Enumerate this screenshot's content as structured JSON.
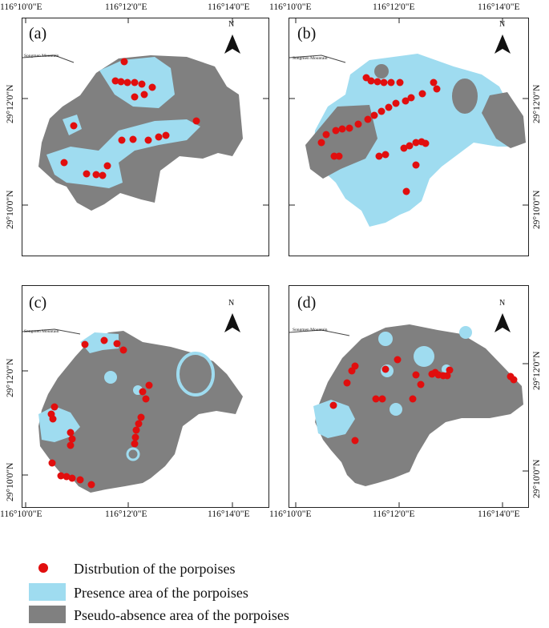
{
  "colors": {
    "presence": "#9fdcf0",
    "absence": "#808080",
    "porpoise": "#e10e0e",
    "frame": "#222222"
  },
  "panels": [
    {
      "id": "a",
      "label": "(a)",
      "top_coords": [
        "116°10'0\"E",
        "116°12'0\"E",
        "116°14'0\"E"
      ],
      "lat_coords": [
        "29°12'0\"N",
        "29°10'0\"N"
      ],
      "lat_side": "left",
      "mountain_label": "Songmen Mountain",
      "north_label": "N"
    },
    {
      "id": "b",
      "label": "(b)",
      "top_coords": [
        "116°10'0\"E",
        "116°12'0\"E",
        "116°14'0\"E"
      ],
      "lat_coords": [
        "29°12'0\"N",
        "29°10'0\"N"
      ],
      "lat_side": "right",
      "mountain_label": "Songmen Mountain",
      "north_label": "N"
    },
    {
      "id": "c",
      "label": "(c)",
      "bottom_coords": [
        "116°10'0\"E",
        "116°12'0\"E",
        "116°14'0\"E"
      ],
      "lat_coords": [
        "29°12'0\"N",
        "29°10'0\"N"
      ],
      "lat_side": "left",
      "mountain_label": "Songmen Mountain",
      "north_label": "N"
    },
    {
      "id": "d",
      "label": "(d)",
      "bottom_coords": [
        "116°10'0\"E",
        "116°12'0\"E",
        "116°14'0\"E"
      ],
      "lat_coords": [
        "29°12'0\"N",
        "29°10'0\"N"
      ],
      "lat_side": "right",
      "mountain_label": "Songmen Mountain",
      "north_label": "N"
    }
  ],
  "legend": {
    "distribution": "Distrbution of the porpoises",
    "presence": "Presence area of the porpoises",
    "absence": "Pseudo-absence area of the porpoises"
  }
}
